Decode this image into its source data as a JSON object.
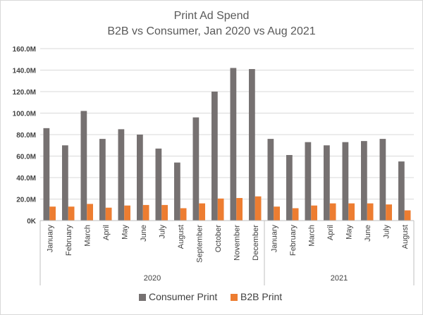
{
  "chart_data": {
    "type": "bar",
    "title": "Print Ad Spend",
    "subtitle": "B2B vs Consumer, Jan 2020 vs Aug 2021",
    "groups": [
      {
        "label": "2020",
        "categories": [
          "January",
          "February",
          "March",
          "April",
          "May",
          "June",
          "July",
          "August",
          "September",
          "October",
          "November",
          "December"
        ]
      },
      {
        "label": "2021",
        "categories": [
          "January",
          "February",
          "March",
          "April",
          "May",
          "June",
          "July",
          "August"
        ]
      }
    ],
    "series": [
      {
        "name": "Consumer Print",
        "color": "#767171",
        "values": [
          86,
          70,
          102,
          76,
          85,
          80,
          67,
          54,
          96,
          120,
          142,
          141,
          76,
          61,
          73,
          70,
          73,
          74,
          76,
          55
        ]
      },
      {
        "name": "B2B Print",
        "color": "#ed7d31",
        "values": [
          13,
          13,
          15.5,
          12,
          14,
          14.5,
          14.5,
          11.5,
          16,
          20.5,
          21,
          22.5,
          13,
          11.5,
          14,
          16,
          16,
          16,
          15,
          9.5
        ]
      }
    ],
    "ylim": [
      0,
      160
    ],
    "yticks": [
      0,
      20,
      40,
      60,
      80,
      100,
      120,
      140,
      160
    ],
    "ytick_labels": [
      "0K",
      "20.0M",
      "40.0M",
      "60.0M",
      "80.0M",
      "100.0M",
      "120.0M",
      "140.0M",
      "160.0M"
    ],
    "grid": true,
    "legend": "bottom"
  }
}
